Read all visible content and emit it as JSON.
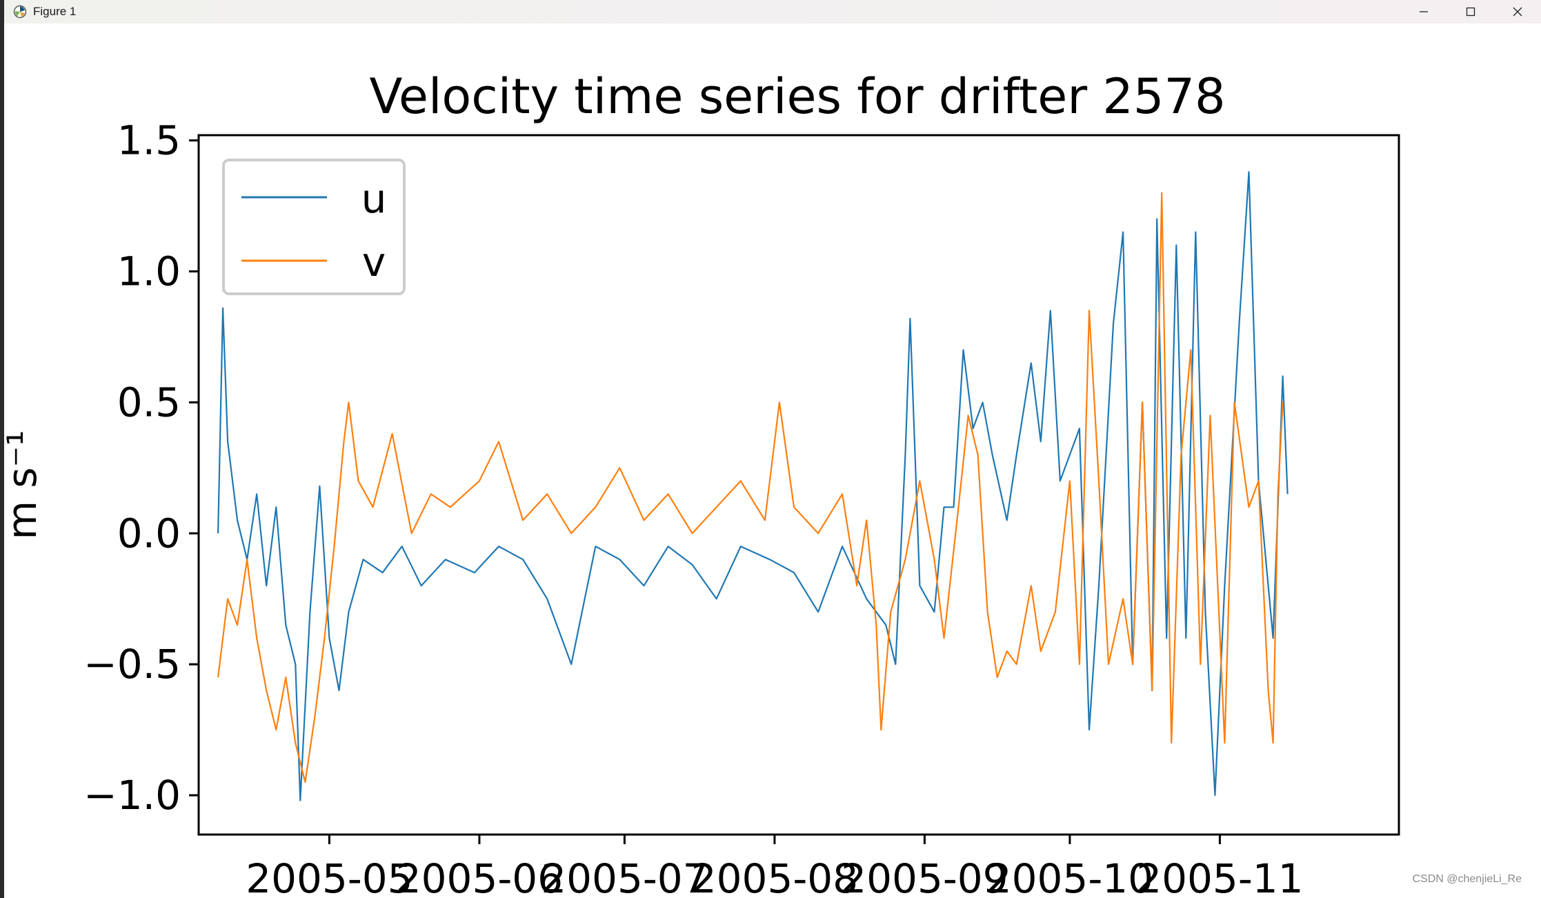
{
  "window": {
    "title": "Figure 1",
    "icons": [
      "matplotlib-logo-icon",
      "minimize-icon",
      "maximize-icon",
      "close-icon"
    ]
  },
  "watermark": "CSDN @chenjieLi_Re",
  "chart_data": {
    "type": "line",
    "title": "Velocity time series for drifter 2578",
    "xlabel": "",
    "ylabel": "m s⁻¹",
    "xlim": [
      "2005-04-04",
      "2005-12-08"
    ],
    "ylim": [
      -1.15,
      1.52
    ],
    "yticks": [
      -1.0,
      -0.5,
      0.0,
      0.5,
      1.0,
      1.5
    ],
    "ytick_labels": [
      "−1.0",
      "−0.5",
      "0.0",
      "0.5",
      "1.0",
      "1.5"
    ],
    "xticks": [
      "2005-05-01",
      "2005-06-01",
      "2005-07-01",
      "2005-08-01",
      "2005-09-01",
      "2005-10-01",
      "2005-11-01"
    ],
    "xtick_labels": [
      "2005-05",
      "2005-06",
      "2005-07",
      "2005-08",
      "2005-09",
      "2005-10",
      "2005-11"
    ],
    "legend": {
      "position": "upper-left",
      "entries": [
        "u",
        "v"
      ]
    },
    "grid": false,
    "series": [
      {
        "name": "u",
        "color": "#1f77b4",
        "points": [
          [
            "2005-04-08",
            0.0
          ],
          [
            "2005-04-09",
            0.86
          ],
          [
            "2005-04-10",
            0.35
          ],
          [
            "2005-04-12",
            0.05
          ],
          [
            "2005-04-14",
            -0.1
          ],
          [
            "2005-04-16",
            0.15
          ],
          [
            "2005-04-18",
            -0.2
          ],
          [
            "2005-04-20",
            0.1
          ],
          [
            "2005-04-22",
            -0.35
          ],
          [
            "2005-04-24",
            -0.5
          ],
          [
            "2005-04-25",
            -1.02
          ],
          [
            "2005-04-27",
            -0.3
          ],
          [
            "2005-04-29",
            0.18
          ],
          [
            "2005-05-01",
            -0.4
          ],
          [
            "2005-05-03",
            -0.6
          ],
          [
            "2005-05-05",
            -0.3
          ],
          [
            "2005-05-08",
            -0.1
          ],
          [
            "2005-05-12",
            -0.15
          ],
          [
            "2005-05-16",
            -0.05
          ],
          [
            "2005-05-20",
            -0.2
          ],
          [
            "2005-05-25",
            -0.1
          ],
          [
            "2005-05-31",
            -0.15
          ],
          [
            "2005-06-05",
            -0.05
          ],
          [
            "2005-06-10",
            -0.1
          ],
          [
            "2005-06-15",
            -0.25
          ],
          [
            "2005-06-20",
            -0.5
          ],
          [
            "2005-06-25",
            -0.05
          ],
          [
            "2005-06-30",
            -0.1
          ],
          [
            "2005-07-05",
            -0.2
          ],
          [
            "2005-07-10",
            -0.05
          ],
          [
            "2005-07-15",
            -0.12
          ],
          [
            "2005-07-20",
            -0.25
          ],
          [
            "2005-07-25",
            -0.05
          ],
          [
            "2005-07-31",
            -0.1
          ],
          [
            "2005-08-05",
            -0.15
          ],
          [
            "2005-08-10",
            -0.3
          ],
          [
            "2005-08-15",
            -0.05
          ],
          [
            "2005-08-20",
            -0.25
          ],
          [
            "2005-08-24",
            -0.35
          ],
          [
            "2005-08-26",
            -0.5
          ],
          [
            "2005-08-28",
            0.3
          ],
          [
            "2005-08-29",
            0.82
          ],
          [
            "2005-08-31",
            -0.2
          ],
          [
            "2005-09-03",
            -0.3
          ],
          [
            "2005-09-05",
            0.1
          ],
          [
            "2005-09-07",
            0.1
          ],
          [
            "2005-09-09",
            0.7
          ],
          [
            "2005-09-11",
            0.4
          ],
          [
            "2005-09-13",
            0.5
          ],
          [
            "2005-09-15",
            0.3
          ],
          [
            "2005-09-18",
            0.05
          ],
          [
            "2005-09-20",
            0.3
          ],
          [
            "2005-09-23",
            0.65
          ],
          [
            "2005-09-25",
            0.35
          ],
          [
            "2005-09-27",
            0.85
          ],
          [
            "2005-09-29",
            0.2
          ],
          [
            "2005-10-01",
            0.3
          ],
          [
            "2005-10-03",
            0.4
          ],
          [
            "2005-10-05",
            -0.75
          ],
          [
            "2005-10-07",
            -0.2
          ],
          [
            "2005-10-10",
            0.8
          ],
          [
            "2005-10-12",
            1.15
          ],
          [
            "2005-10-14",
            -0.5
          ],
          [
            "2005-10-16",
            0.5
          ],
          [
            "2005-10-18",
            -0.6
          ],
          [
            "2005-10-19",
            1.2
          ],
          [
            "2005-10-21",
            -0.4
          ],
          [
            "2005-10-23",
            1.1
          ],
          [
            "2005-10-25",
            -0.4
          ],
          [
            "2005-10-27",
            1.15
          ],
          [
            "2005-10-29",
            -0.3
          ],
          [
            "2005-10-31",
            -1.0
          ],
          [
            "2005-11-02",
            -0.2
          ],
          [
            "2005-11-05",
            0.8
          ],
          [
            "2005-11-07",
            1.38
          ],
          [
            "2005-11-09",
            0.2
          ],
          [
            "2005-11-12",
            -0.4
          ],
          [
            "2005-11-14",
            0.6
          ],
          [
            "2005-11-15",
            0.15
          ]
        ]
      },
      {
        "name": "v",
        "color": "#ff7f0e",
        "points": [
          [
            "2005-04-08",
            -0.55
          ],
          [
            "2005-04-10",
            -0.25
          ],
          [
            "2005-04-12",
            -0.35
          ],
          [
            "2005-04-14",
            -0.1
          ],
          [
            "2005-04-16",
            -0.4
          ],
          [
            "2005-04-18",
            -0.6
          ],
          [
            "2005-04-20",
            -0.75
          ],
          [
            "2005-04-22",
            -0.55
          ],
          [
            "2005-04-24",
            -0.8
          ],
          [
            "2005-04-26",
            -0.95
          ],
          [
            "2005-04-28",
            -0.7
          ],
          [
            "2005-04-30",
            -0.4
          ],
          [
            "2005-05-02",
            -0.05
          ],
          [
            "2005-05-04",
            0.35
          ],
          [
            "2005-05-05",
            0.5
          ],
          [
            "2005-05-07",
            0.2
          ],
          [
            "2005-05-10",
            0.1
          ],
          [
            "2005-05-14",
            0.38
          ],
          [
            "2005-05-18",
            0.0
          ],
          [
            "2005-05-22",
            0.15
          ],
          [
            "2005-05-26",
            0.1
          ],
          [
            "2005-06-01",
            0.2
          ],
          [
            "2005-06-05",
            0.35
          ],
          [
            "2005-06-10",
            0.05
          ],
          [
            "2005-06-15",
            0.15
          ],
          [
            "2005-06-20",
            0.0
          ],
          [
            "2005-06-25",
            0.1
          ],
          [
            "2005-06-30",
            0.25
          ],
          [
            "2005-07-05",
            0.05
          ],
          [
            "2005-07-10",
            0.15
          ],
          [
            "2005-07-15",
            0.0
          ],
          [
            "2005-07-20",
            0.1
          ],
          [
            "2005-07-25",
            0.2
          ],
          [
            "2005-07-30",
            0.05
          ],
          [
            "2005-08-02",
            0.5
          ],
          [
            "2005-08-05",
            0.1
          ],
          [
            "2005-08-10",
            0.0
          ],
          [
            "2005-08-15",
            0.15
          ],
          [
            "2005-08-18",
            -0.2
          ],
          [
            "2005-08-20",
            0.05
          ],
          [
            "2005-08-22",
            -0.35
          ],
          [
            "2005-08-23",
            -0.75
          ],
          [
            "2005-08-25",
            -0.3
          ],
          [
            "2005-08-28",
            -0.1
          ],
          [
            "2005-08-31",
            0.2
          ],
          [
            "2005-09-03",
            -0.1
          ],
          [
            "2005-09-05",
            -0.4
          ],
          [
            "2005-09-08",
            0.1
          ],
          [
            "2005-09-10",
            0.45
          ],
          [
            "2005-09-12",
            0.3
          ],
          [
            "2005-09-14",
            -0.3
          ],
          [
            "2005-09-16",
            -0.55
          ],
          [
            "2005-09-18",
            -0.45
          ],
          [
            "2005-09-20",
            -0.5
          ],
          [
            "2005-09-23",
            -0.2
          ],
          [
            "2005-09-25",
            -0.45
          ],
          [
            "2005-09-28",
            -0.3
          ],
          [
            "2005-10-01",
            0.2
          ],
          [
            "2005-10-03",
            -0.5
          ],
          [
            "2005-10-05",
            0.85
          ],
          [
            "2005-10-07",
            0.2
          ],
          [
            "2005-10-09",
            -0.5
          ],
          [
            "2005-10-12",
            -0.25
          ],
          [
            "2005-10-14",
            -0.5
          ],
          [
            "2005-10-16",
            0.5
          ],
          [
            "2005-10-18",
            -0.6
          ],
          [
            "2005-10-20",
            1.3
          ],
          [
            "2005-10-22",
            -0.8
          ],
          [
            "2005-10-24",
            0.3
          ],
          [
            "2005-10-26",
            0.7
          ],
          [
            "2005-10-28",
            -0.5
          ],
          [
            "2005-10-30",
            0.45
          ],
          [
            "2005-11-02",
            -0.8
          ],
          [
            "2005-11-04",
            0.5
          ],
          [
            "2005-11-07",
            0.1
          ],
          [
            "2005-11-09",
            0.2
          ],
          [
            "2005-11-11",
            -0.6
          ],
          [
            "2005-11-12",
            -0.8
          ],
          [
            "2005-11-13",
            0.15
          ],
          [
            "2005-11-14",
            0.5
          ]
        ]
      }
    ]
  }
}
